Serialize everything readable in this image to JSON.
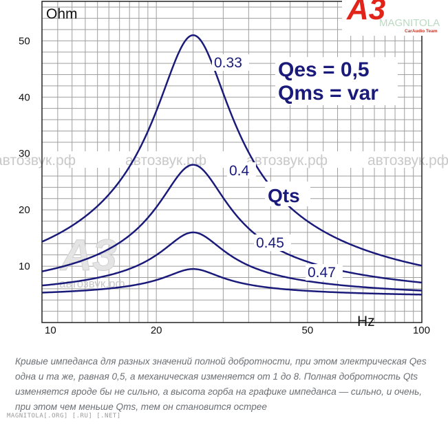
{
  "chart_data": {
    "type": "line",
    "title": "",
    "xlabel": "Hz",
    "ylabel": "Ohm",
    "x_scale": "log",
    "xlim": [
      10,
      100
    ],
    "ylim": [
      0,
      57
    ],
    "x_ticks": [
      10,
      20,
      50,
      100
    ],
    "y_ticks": [
      10,
      20,
      30,
      40,
      50
    ],
    "grid": true,
    "resonance_hz": 25,
    "baseline_ohm": 4.5,
    "legend_title": "Qts",
    "series": [
      {
        "name": "0.33",
        "peak_ohm": 51
      },
      {
        "name": "0.4",
        "peak_ohm": 28
      },
      {
        "name": "0.45",
        "peak_ohm": 16
      },
      {
        "name": "0.47",
        "peak_ohm": 9.5
      }
    ],
    "annotations": [
      "Qes = 0,5",
      "Qms = var"
    ],
    "colors": {
      "curve": "#1a1a7a",
      "grid": "#9e9e9e",
      "annotation": "#1a1a7a"
    }
  },
  "watermarks": {
    "site_text": "автозвук.рф",
    "logo_text": "A3",
    "logo_sub": "MAGNITOLA",
    "logo_team": "CarAudio Team"
  },
  "caption": "Кривые импеданса для разных значений полной добротности, при этом электрическая Qes одна и та же, равная 0,5, а механическая изменяется от 1 до 8. Полная добротность Qts изменяется вроде бы не сильно, а высота горба на графике импеданса — сильно, и очень, при этом чем меньше Qms, тем он становится острее",
  "footer": "MAGNITOLA[.ORG] [.RU] [.NET]"
}
